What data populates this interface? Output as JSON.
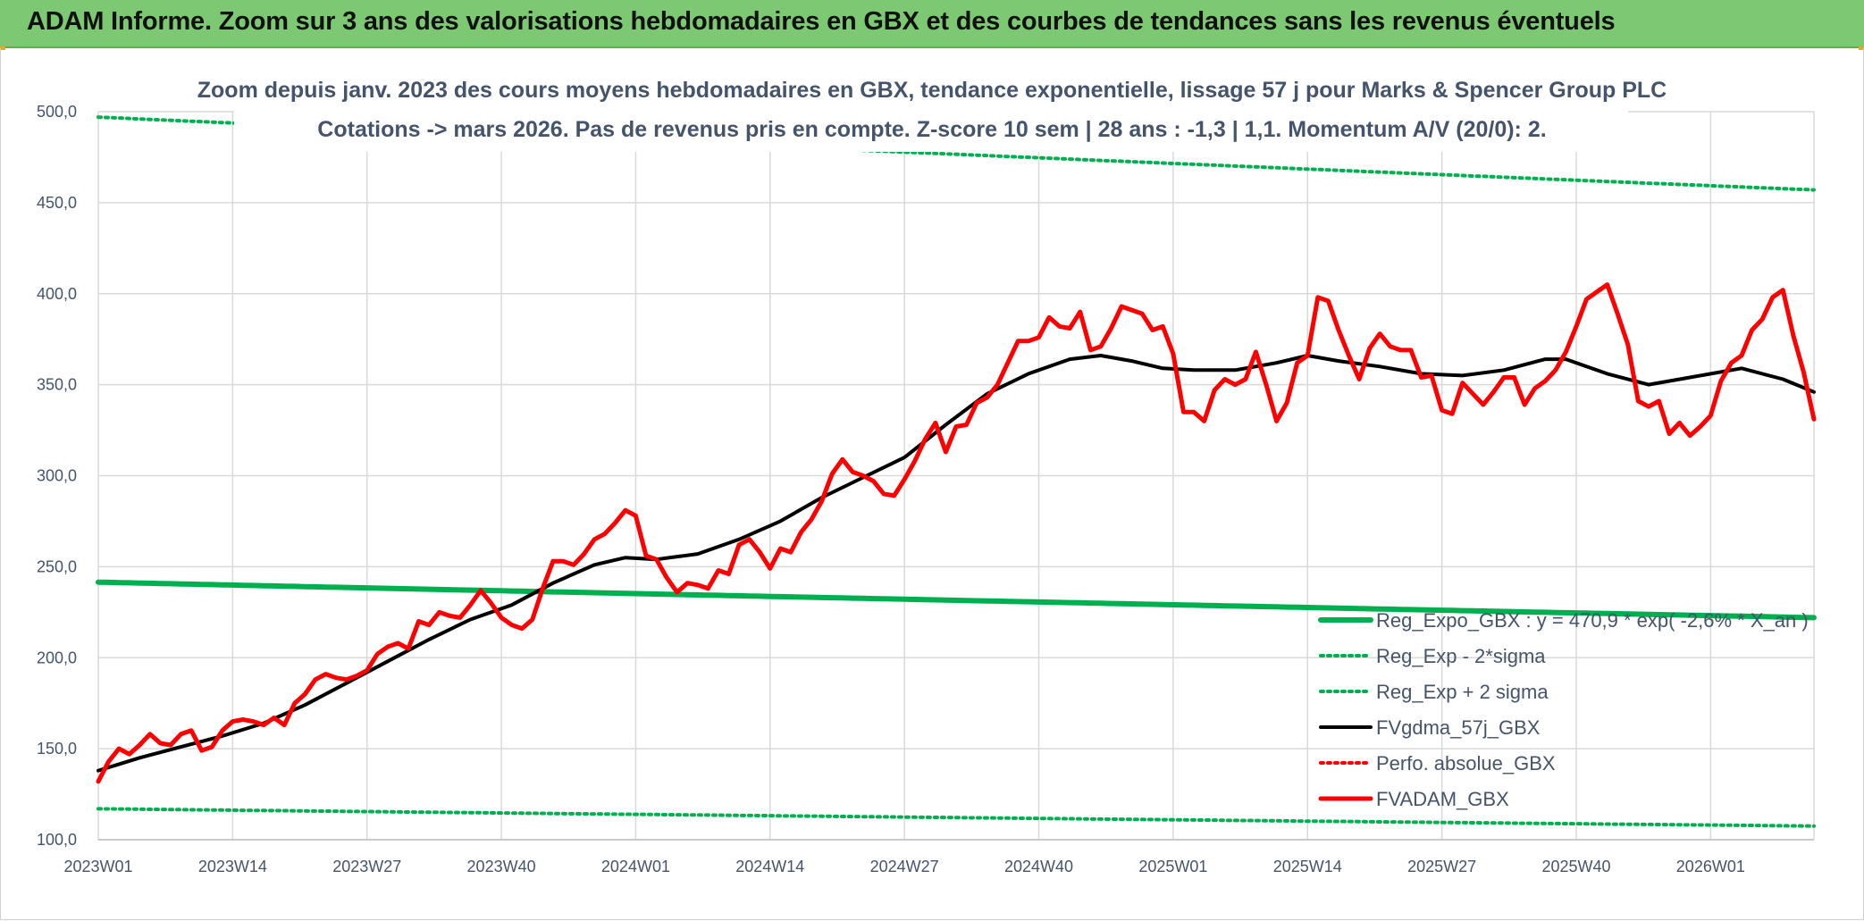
{
  "header": {
    "title": "ADAM Informe. Zoom sur 3 ans des valorisations hebdomadaires en GBX et des courbes de tendances sans les revenus éventuels"
  },
  "chart_data": {
    "type": "line",
    "title": "Zoom depuis janv. 2023 des cours moyens hebdomadaires en GBX, tendance exponentielle, lissage 57 j pour Marks & Spencer Group PLC",
    "subtitle": "Cotations -> mars 2026. Pas de revenus pris en compte. Z-score 10 sem | 28 ans : -1,3 | 1,1. Momentum A/V (20/0): 2.",
    "xlabel": "",
    "ylabel": "",
    "ylim": [
      100,
      500
    ],
    "yticks": [
      "100,0",
      "150,0",
      "200,0",
      "250,0",
      "300,0",
      "350,0",
      "400,0",
      "450,0",
      "500,0"
    ],
    "xticks": [
      "2023W01",
      "2023W14",
      "2023W27",
      "2023W40",
      "2024W01",
      "2024W14",
      "2024W27",
      "2024W40",
      "2025W01",
      "2025W14",
      "2025W27",
      "2025W40",
      "2026W01"
    ],
    "grid": true,
    "legend_position": "bottom-right",
    "x_points": 167,
    "series": [
      {
        "name": "Reg_Expo_GBX : y = 470,9 * exp( -2,6% * X_an )",
        "color": "#00b050",
        "style": "solid-thick",
        "values": [
          [
            0,
            241.5
          ],
          [
            166,
            222.0
          ]
        ]
      },
      {
        "name": "Reg_Exp - 2*sigma",
        "color": "#00b050",
        "style": "dotted",
        "values": [
          [
            0,
            117.0
          ],
          [
            166,
            107.5
          ]
        ]
      },
      {
        "name": "Reg_Exp + 2 sigma",
        "color": "#00b050",
        "style": "dotted",
        "values": [
          [
            0,
            497.0
          ],
          [
            166,
            457.0
          ]
        ]
      },
      {
        "name": "FVgdma_57j_GBX",
        "color": "#000000",
        "style": "solid",
        "values": [
          [
            0,
            138
          ],
          [
            4,
            145
          ],
          [
            8,
            151
          ],
          [
            12,
            157
          ],
          [
            16,
            164
          ],
          [
            20,
            174
          ],
          [
            24,
            186
          ],
          [
            28,
            198
          ],
          [
            32,
            210
          ],
          [
            36,
            221
          ],
          [
            40,
            229
          ],
          [
            44,
            241
          ],
          [
            48,
            251
          ],
          [
            51,
            255
          ],
          [
            54,
            254
          ],
          [
            58,
            257
          ],
          [
            62,
            265
          ],
          [
            66,
            275
          ],
          [
            70,
            288
          ],
          [
            74,
            299
          ],
          [
            78,
            310
          ],
          [
            82,
            328
          ],
          [
            86,
            345
          ],
          [
            90,
            356
          ],
          [
            94,
            364
          ],
          [
            97,
            366
          ],
          [
            100,
            363
          ],
          [
            103,
            359
          ],
          [
            106,
            358
          ],
          [
            110,
            358
          ],
          [
            114,
            362
          ],
          [
            117,
            366
          ],
          [
            120,
            363
          ],
          [
            124,
            360
          ],
          [
            128,
            356
          ],
          [
            132,
            355
          ],
          [
            136,
            358
          ],
          [
            140,
            364
          ],
          [
            142,
            364
          ],
          [
            146,
            356
          ],
          [
            150,
            350
          ],
          [
            154,
            354
          ],
          [
            159,
            359
          ],
          [
            163,
            353
          ],
          [
            166,
            346
          ]
        ]
      },
      {
        "name": "Perfo. absolue_GBX",
        "color": "#ff0000",
        "style": "dotted",
        "values": []
      },
      {
        "name": "FVADAM_GBX",
        "color": "#ff0000",
        "style": "solid-thick",
        "values": [
          [
            0,
            132
          ],
          [
            1,
            143
          ],
          [
            2,
            150
          ],
          [
            3,
            147
          ],
          [
            4,
            152
          ],
          [
            5,
            158
          ],
          [
            6,
            153
          ],
          [
            7,
            152
          ],
          [
            8,
            158
          ],
          [
            9,
            160
          ],
          [
            10,
            149
          ],
          [
            11,
            151
          ],
          [
            12,
            160
          ],
          [
            13,
            165
          ],
          [
            14,
            166
          ],
          [
            15,
            165
          ],
          [
            16,
            163
          ],
          [
            17,
            167
          ],
          [
            18,
            163
          ],
          [
            19,
            175
          ],
          [
            20,
            180
          ],
          [
            21,
            188
          ],
          [
            22,
            191
          ],
          [
            23,
            189
          ],
          [
            24,
            188
          ],
          [
            25,
            190
          ],
          [
            26,
            193
          ],
          [
            27,
            202
          ],
          [
            28,
            206
          ],
          [
            29,
            208
          ],
          [
            30,
            205
          ],
          [
            31,
            220
          ],
          [
            32,
            218
          ],
          [
            33,
            225
          ],
          [
            34,
            223
          ],
          [
            35,
            222
          ],
          [
            36,
            229
          ],
          [
            37,
            237
          ],
          [
            38,
            230
          ],
          [
            39,
            222
          ],
          [
            40,
            218
          ],
          [
            41,
            216
          ],
          [
            42,
            221
          ],
          [
            43,
            238
          ],
          [
            44,
            253
          ],
          [
            45,
            253
          ],
          [
            46,
            251
          ],
          [
            47,
            257
          ],
          [
            48,
            265
          ],
          [
            49,
            268
          ],
          [
            50,
            274
          ],
          [
            51,
            281
          ],
          [
            52,
            278
          ],
          [
            53,
            256
          ],
          [
            54,
            254
          ],
          [
            55,
            244
          ],
          [
            56,
            236
          ],
          [
            57,
            241
          ],
          [
            58,
            240
          ],
          [
            59,
            238
          ],
          [
            60,
            248
          ],
          [
            61,
            246
          ],
          [
            62,
            262
          ],
          [
            63,
            265
          ],
          [
            64,
            258
          ],
          [
            65,
            249
          ],
          [
            66,
            260
          ],
          [
            67,
            258
          ],
          [
            68,
            269
          ],
          [
            69,
            276
          ],
          [
            70,
            286
          ],
          [
            71,
            301
          ],
          [
            72,
            309
          ],
          [
            73,
            302
          ],
          [
            74,
            300
          ],
          [
            75,
            297
          ],
          [
            76,
            290
          ],
          [
            77,
            289
          ],
          [
            78,
            298
          ],
          [
            79,
            308
          ],
          [
            80,
            320
          ],
          [
            81,
            329
          ],
          [
            82,
            313
          ],
          [
            83,
            327
          ],
          [
            84,
            328
          ],
          [
            85,
            340
          ],
          [
            86,
            343
          ],
          [
            87,
            350
          ],
          [
            88,
            362
          ],
          [
            89,
            374
          ],
          [
            90,
            374
          ],
          [
            91,
            376
          ],
          [
            92,
            387
          ],
          [
            93,
            382
          ],
          [
            94,
            381
          ],
          [
            95,
            390
          ],
          [
            96,
            369
          ],
          [
            97,
            371
          ],
          [
            98,
            381
          ],
          [
            99,
            393
          ],
          [
            100,
            391
          ],
          [
            101,
            389
          ],
          [
            102,
            380
          ],
          [
            103,
            382
          ],
          [
            104,
            367
          ],
          [
            105,
            335
          ],
          [
            106,
            335
          ],
          [
            107,
            330
          ],
          [
            108,
            347
          ],
          [
            109,
            353
          ],
          [
            110,
            350
          ],
          [
            111,
            353
          ],
          [
            112,
            368
          ],
          [
            113,
            350
          ],
          [
            114,
            330
          ],
          [
            115,
            340
          ],
          [
            116,
            362
          ],
          [
            117,
            366
          ],
          [
            118,
            398
          ],
          [
            119,
            396
          ],
          [
            120,
            380
          ],
          [
            121,
            366
          ],
          [
            122,
            353
          ],
          [
            123,
            370
          ],
          [
            124,
            378
          ],
          [
            125,
            371
          ],
          [
            126,
            369
          ],
          [
            127,
            369
          ],
          [
            128,
            354
          ],
          [
            129,
            355
          ],
          [
            130,
            336
          ],
          [
            131,
            334
          ],
          [
            132,
            351
          ],
          [
            133,
            345
          ],
          [
            134,
            339
          ],
          [
            135,
            346
          ],
          [
            136,
            354
          ],
          [
            137,
            354
          ],
          [
            138,
            339
          ],
          [
            139,
            348
          ],
          [
            140,
            352
          ],
          [
            141,
            358
          ],
          [
            142,
            368
          ],
          [
            143,
            382
          ],
          [
            144,
            397
          ],
          [
            145,
            401
          ],
          [
            146,
            405
          ],
          [
            147,
            389
          ],
          [
            148,
            372
          ],
          [
            149,
            341
          ],
          [
            150,
            338
          ],
          [
            151,
            341
          ],
          [
            152,
            323
          ],
          [
            153,
            329
          ],
          [
            154,
            322
          ],
          [
            155,
            327
          ],
          [
            156,
            333
          ],
          [
            157,
            352
          ],
          [
            158,
            362
          ],
          [
            159,
            366
          ],
          [
            160,
            380
          ],
          [
            161,
            386
          ],
          [
            162,
            398
          ],
          [
            163,
            402
          ],
          [
            164,
            377
          ],
          [
            165,
            357
          ],
          [
            166,
            331
          ]
        ]
      }
    ]
  }
}
